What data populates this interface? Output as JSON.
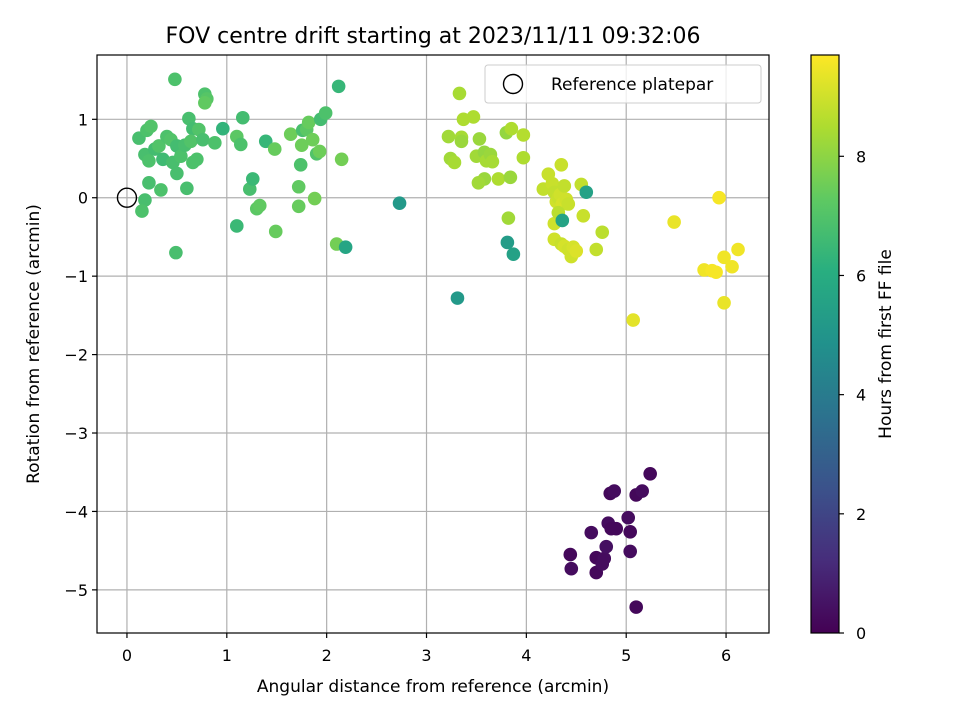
{
  "chart_data": {
    "type": "scatter",
    "title": "FOV centre drift starting at 2023/11/11 09:32:06",
    "xlabel": "Angular distance from reference (arcmin)",
    "ylabel": "Rotation from reference (arcmin)",
    "xlim": [
      -0.3,
      6.43
    ],
    "ylim": [
      -5.55,
      1.82
    ],
    "xticks": [
      0,
      1,
      2,
      3,
      4,
      5,
      6
    ],
    "yticks": [
      -5,
      -4,
      -3,
      -2,
      -1,
      0,
      1
    ],
    "xtick_labels": [
      "0",
      "1",
      "2",
      "3",
      "4",
      "5",
      "6"
    ],
    "ytick_labels": [
      "−5",
      "−4",
      "−3",
      "−2",
      "−1",
      "0",
      "1"
    ],
    "grid": true,
    "colormap": "viridis",
    "colorbar": {
      "label": "Hours from first FF file",
      "range": [
        0,
        9.7
      ],
      "ticks": [
        0,
        2,
        4,
        6,
        8
      ],
      "tick_labels": [
        "0",
        "2",
        "4",
        "6",
        "8"
      ]
    },
    "legend": {
      "location": "top-right",
      "entries": [
        "Reference platepar"
      ]
    },
    "reference_point": {
      "x": 0,
      "y": 0
    },
    "points": [
      {
        "x": 0.48,
        "y": 1.51,
        "h": 6.9
      },
      {
        "x": 0.78,
        "y": 1.32,
        "h": 6.9
      },
      {
        "x": 0.8,
        "y": 1.26,
        "h": 7.1
      },
      {
        "x": 0.78,
        "y": 1.21,
        "h": 7.3
      },
      {
        "x": 0.12,
        "y": 0.76,
        "h": 6.8
      },
      {
        "x": 0.2,
        "y": 0.86,
        "h": 6.9
      },
      {
        "x": 0.24,
        "y": 0.91,
        "h": 7.0
      },
      {
        "x": 0.18,
        "y": 0.55,
        "h": 6.8
      },
      {
        "x": 0.22,
        "y": 0.47,
        "h": 6.9
      },
      {
        "x": 0.28,
        "y": 0.62,
        "h": 6.7
      },
      {
        "x": 0.32,
        "y": 0.66,
        "h": 7.0
      },
      {
        "x": 0.36,
        "y": 0.49,
        "h": 6.6
      },
      {
        "x": 0.4,
        "y": 0.78,
        "h": 6.9
      },
      {
        "x": 0.44,
        "y": 0.74,
        "h": 7.0
      },
      {
        "x": 0.46,
        "y": 0.45,
        "h": 6.8
      },
      {
        "x": 0.5,
        "y": 0.66,
        "h": 6.7
      },
      {
        "x": 0.54,
        "y": 0.53,
        "h": 6.9
      },
      {
        "x": 0.58,
        "y": 0.67,
        "h": 6.8
      },
      {
        "x": 0.62,
        "y": 1.01,
        "h": 6.8
      },
      {
        "x": 0.66,
        "y": 0.88,
        "h": 6.7
      },
      {
        "x": 0.64,
        "y": 0.72,
        "h": 7.0
      },
      {
        "x": 0.7,
        "y": 0.49,
        "h": 6.9
      },
      {
        "x": 0.72,
        "y": 0.87,
        "h": 7.0
      },
      {
        "x": 0.76,
        "y": 0.74,
        "h": 6.8
      },
      {
        "x": 0.66,
        "y": 0.45,
        "h": 6.9
      },
      {
        "x": 0.6,
        "y": 0.12,
        "h": 6.8
      },
      {
        "x": 0.5,
        "y": 0.31,
        "h": 6.8
      },
      {
        "x": 0.34,
        "y": 0.1,
        "h": 6.9
      },
      {
        "x": 0.22,
        "y": 0.19,
        "h": 6.8
      },
      {
        "x": 0.18,
        "y": -0.03,
        "h": 6.8
      },
      {
        "x": 0.15,
        "y": -0.17,
        "h": 6.9
      },
      {
        "x": 0.49,
        "y": -0.7,
        "h": 6.8
      },
      {
        "x": 0.88,
        "y": 0.7,
        "h": 6.9
      },
      {
        "x": 0.96,
        "y": 0.88,
        "h": 6.3
      },
      {
        "x": 1.1,
        "y": 0.78,
        "h": 7.2
      },
      {
        "x": 1.14,
        "y": 0.68,
        "h": 6.9
      },
      {
        "x": 1.16,
        "y": 1.02,
        "h": 6.7
      },
      {
        "x": 1.1,
        "y": -0.36,
        "h": 6.5
      },
      {
        "x": 1.23,
        "y": 0.11,
        "h": 6.8
      },
      {
        "x": 1.26,
        "y": 0.24,
        "h": 6.5
      },
      {
        "x": 1.3,
        "y": -0.14,
        "h": 7.2
      },
      {
        "x": 1.33,
        "y": -0.1,
        "h": 7.3
      },
      {
        "x": 1.39,
        "y": 0.72,
        "h": 6.4
      },
      {
        "x": 1.48,
        "y": 0.62,
        "h": 7.4
      },
      {
        "x": 1.49,
        "y": -0.43,
        "h": 7.4
      },
      {
        "x": 1.64,
        "y": 0.81,
        "h": 7.5
      },
      {
        "x": 1.72,
        "y": 0.14,
        "h": 7.3
      },
      {
        "x": 1.72,
        "y": -0.11,
        "h": 7.4
      },
      {
        "x": 1.74,
        "y": 0.42,
        "h": 6.9
      },
      {
        "x": 1.75,
        "y": 0.67,
        "h": 7.5
      },
      {
        "x": 1.76,
        "y": 0.86,
        "h": 6.8
      },
      {
        "x": 1.8,
        "y": 0.87,
        "h": 7.2
      },
      {
        "x": 1.82,
        "y": 0.96,
        "h": 7.4
      },
      {
        "x": 1.86,
        "y": 0.74,
        "h": 7.5
      },
      {
        "x": 1.88,
        "y": -0.01,
        "h": 7.6
      },
      {
        "x": 1.9,
        "y": 0.56,
        "h": 7.0
      },
      {
        "x": 1.93,
        "y": 0.59,
        "h": 7.5
      },
      {
        "x": 1.94,
        "y": 1.0,
        "h": 6.7
      },
      {
        "x": 1.99,
        "y": 1.08,
        "h": 6.9
      },
      {
        "x": 2.12,
        "y": 1.42,
        "h": 6.4
      },
      {
        "x": 2.1,
        "y": -0.59,
        "h": 7.6
      },
      {
        "x": 2.15,
        "y": 0.49,
        "h": 7.6
      },
      {
        "x": 2.19,
        "y": -0.63,
        "h": 5.7
      },
      {
        "x": 2.73,
        "y": -0.07,
        "h": 5.2
      },
      {
        "x": 3.31,
        "y": -1.28,
        "h": 5.2
      },
      {
        "x": 3.33,
        "y": 1.33,
        "h": 8.4
      },
      {
        "x": 3.37,
        "y": 1.0,
        "h": 8.5
      },
      {
        "x": 3.47,
        "y": 1.03,
        "h": 8.5
      },
      {
        "x": 3.22,
        "y": 0.78,
        "h": 8.3
      },
      {
        "x": 3.35,
        "y": 0.77,
        "h": 8.4
      },
      {
        "x": 3.35,
        "y": 0.72,
        "h": 8.2
      },
      {
        "x": 3.24,
        "y": 0.5,
        "h": 8.3
      },
      {
        "x": 3.28,
        "y": 0.45,
        "h": 8.4
      },
      {
        "x": 3.5,
        "y": 0.53,
        "h": 8.3
      },
      {
        "x": 3.53,
        "y": 0.75,
        "h": 8.2
      },
      {
        "x": 3.58,
        "y": 0.58,
        "h": 8.1
      },
      {
        "x": 3.6,
        "y": 0.47,
        "h": 8.4
      },
      {
        "x": 3.64,
        "y": 0.55,
        "h": 8.2
      },
      {
        "x": 3.66,
        "y": 0.46,
        "h": 8.4
      },
      {
        "x": 3.58,
        "y": 0.24,
        "h": 8.2
      },
      {
        "x": 3.52,
        "y": 0.19,
        "h": 8.3
      },
      {
        "x": 3.72,
        "y": 0.24,
        "h": 8.5
      },
      {
        "x": 3.8,
        "y": 0.83,
        "h": 8.1
      },
      {
        "x": 3.85,
        "y": 0.88,
        "h": 8.5
      },
      {
        "x": 3.84,
        "y": 0.26,
        "h": 8.2
      },
      {
        "x": 3.82,
        "y": -0.26,
        "h": 8.3
      },
      {
        "x": 3.97,
        "y": 0.8,
        "h": 8.6
      },
      {
        "x": 3.97,
        "y": 0.51,
        "h": 8.5
      },
      {
        "x": 3.81,
        "y": -0.57,
        "h": 5.3
      },
      {
        "x": 3.87,
        "y": -0.72,
        "h": 5.5
      },
      {
        "x": 4.17,
        "y": 0.11,
        "h": 8.8
      },
      {
        "x": 4.22,
        "y": 0.3,
        "h": 8.9
      },
      {
        "x": 4.26,
        "y": 0.18,
        "h": 8.9
      },
      {
        "x": 4.28,
        "y": 0.07,
        "h": 8.8
      },
      {
        "x": 4.3,
        "y": -0.05,
        "h": 9.0
      },
      {
        "x": 4.32,
        "y": 0.0,
        "h": 8.9
      },
      {
        "x": 4.34,
        "y": 0.04,
        "h": 9.0
      },
      {
        "x": 4.36,
        "y": -0.08,
        "h": 9.1
      },
      {
        "x": 4.38,
        "y": 0.15,
        "h": 8.8
      },
      {
        "x": 4.35,
        "y": 0.42,
        "h": 8.9
      },
      {
        "x": 4.4,
        "y": -0.02,
        "h": 9.0
      },
      {
        "x": 4.42,
        "y": -0.08,
        "h": 8.9
      },
      {
        "x": 4.28,
        "y": -0.33,
        "h": 9.0
      },
      {
        "x": 4.32,
        "y": -0.19,
        "h": 8.7
      },
      {
        "x": 4.36,
        "y": -0.29,
        "h": 5.6
      },
      {
        "x": 4.28,
        "y": -0.53,
        "h": 9.0
      },
      {
        "x": 4.35,
        "y": -0.59,
        "h": 8.9
      },
      {
        "x": 4.38,
        "y": -0.62,
        "h": 9.1
      },
      {
        "x": 4.42,
        "y": -0.66,
        "h": 9.0
      },
      {
        "x": 4.45,
        "y": -0.75,
        "h": 9.0
      },
      {
        "x": 4.47,
        "y": -0.63,
        "h": 9.1
      },
      {
        "x": 4.5,
        "y": -0.68,
        "h": 9.2
      },
      {
        "x": 4.55,
        "y": 0.17,
        "h": 8.8
      },
      {
        "x": 4.57,
        "y": -0.23,
        "h": 8.9
      },
      {
        "x": 4.6,
        "y": 0.07,
        "h": 5.5
      },
      {
        "x": 4.7,
        "y": -0.66,
        "h": 8.8
      },
      {
        "x": 4.76,
        "y": -0.44,
        "h": 8.7
      },
      {
        "x": 5.07,
        "y": -1.56,
        "h": 9.3
      },
      {
        "x": 5.48,
        "y": -0.31,
        "h": 9.4
      },
      {
        "x": 5.78,
        "y": -0.92,
        "h": 9.5
      },
      {
        "x": 5.86,
        "y": -0.93,
        "h": 9.6
      },
      {
        "x": 5.9,
        "y": -0.95,
        "h": 9.6
      },
      {
        "x": 5.93,
        "y": 0.0,
        "h": 9.6
      },
      {
        "x": 5.98,
        "y": -0.76,
        "h": 9.5
      },
      {
        "x": 5.98,
        "y": -1.34,
        "h": 9.4
      },
      {
        "x": 6.06,
        "y": -0.88,
        "h": 9.5
      },
      {
        "x": 6.12,
        "y": -0.66,
        "h": 9.5
      },
      {
        "x": 4.44,
        "y": -4.55,
        "h": 0.2
      },
      {
        "x": 4.45,
        "y": -4.73,
        "h": 0.3
      },
      {
        "x": 4.65,
        "y": -4.27,
        "h": 0.3
      },
      {
        "x": 4.7,
        "y": -4.59,
        "h": 0.2
      },
      {
        "x": 4.7,
        "y": -4.78,
        "h": 0.2
      },
      {
        "x": 4.76,
        "y": -4.67,
        "h": 0.3
      },
      {
        "x": 4.78,
        "y": -4.6,
        "h": 0.3
      },
      {
        "x": 4.8,
        "y": -4.45,
        "h": 0.4
      },
      {
        "x": 4.82,
        "y": -4.15,
        "h": 0.3
      },
      {
        "x": 4.84,
        "y": -3.77,
        "h": 0.2
      },
      {
        "x": 4.85,
        "y": -4.22,
        "h": 0.2
      },
      {
        "x": 4.88,
        "y": -3.74,
        "h": 0.3
      },
      {
        "x": 4.9,
        "y": -4.22,
        "h": 0.2
      },
      {
        "x": 5.02,
        "y": -4.08,
        "h": 0.3
      },
      {
        "x": 5.04,
        "y": -4.26,
        "h": 0.2
      },
      {
        "x": 5.04,
        "y": -4.51,
        "h": 0.3
      },
      {
        "x": 5.1,
        "y": -3.79,
        "h": 0.2
      },
      {
        "x": 5.16,
        "y": -3.74,
        "h": 0.3
      },
      {
        "x": 5.24,
        "y": -3.52,
        "h": 0.2
      },
      {
        "x": 5.1,
        "y": -5.22,
        "h": 0.2
      }
    ]
  }
}
